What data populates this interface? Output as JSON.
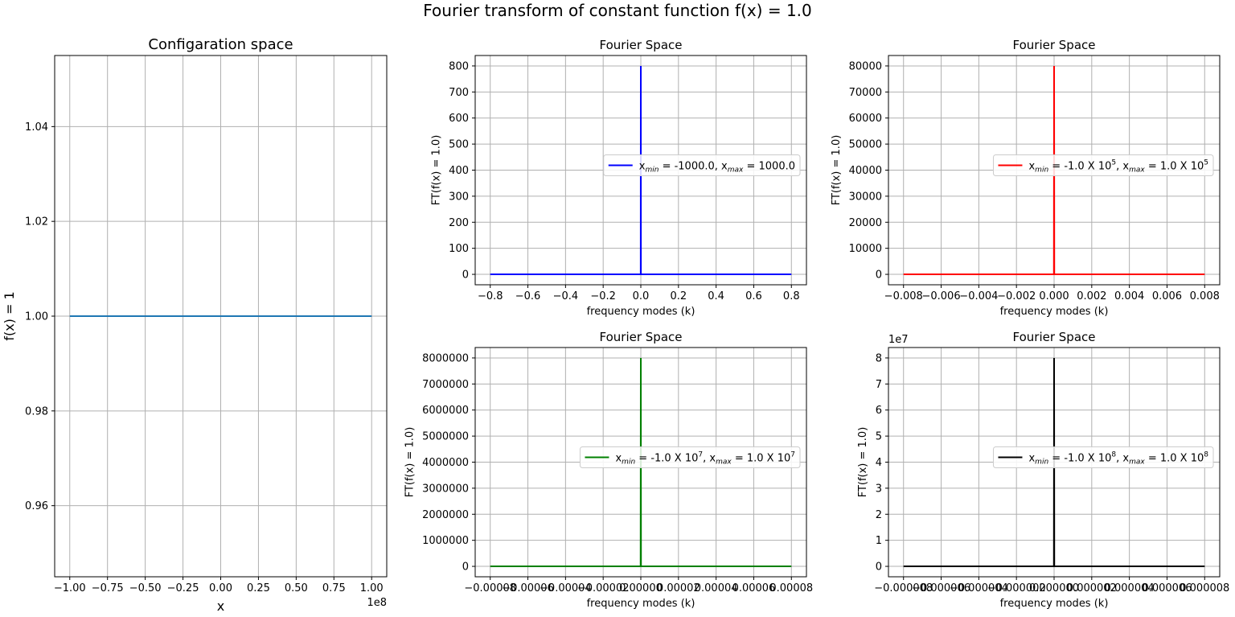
{
  "figure_title": "Fourier transform of constant function f(x) = 1.0",
  "chart_data": [
    {
      "id": "config",
      "type": "line",
      "title": "Configaration space",
      "xlabel": "x",
      "ylabel": "f(x) = 1",
      "offset_text": "1e8",
      "xlim": [
        -1.1,
        1.1
      ],
      "ylim": [
        0.945,
        1.055
      ],
      "xticks": [
        -1.0,
        -0.75,
        -0.5,
        -0.25,
        0.0,
        0.25,
        0.5,
        0.75,
        1.0
      ],
      "xtick_labels": [
        "−1.00",
        "−0.75",
        "−0.50",
        "−0.25",
        "0.00",
        "0.25",
        "0.50",
        "0.75",
        "1.00"
      ],
      "yticks": [
        0.96,
        0.98,
        1.0,
        1.02,
        1.04
      ],
      "ytick_labels": [
        "0.96",
        "0.98",
        "1.00",
        "1.02",
        "1.04"
      ],
      "grid": true,
      "series": [
        {
          "color": "#1f77b4",
          "x": [
            -1.0,
            1.0
          ],
          "y": [
            1.0,
            1.0
          ]
        }
      ]
    },
    {
      "id": "fourier1",
      "type": "line",
      "title": "Fourier Space",
      "xlabel": "frequency modes (k)",
      "ylabel": "FT(f(x) = 1.0)",
      "xlim": [
        -0.88,
        0.88
      ],
      "ylim": [
        -40,
        840
      ],
      "xticks": [
        -0.8,
        -0.6,
        -0.4,
        -0.2,
        0.0,
        0.2,
        0.4,
        0.6,
        0.8
      ],
      "xtick_labels": [
        "−0.8",
        "−0.6",
        "−0.4",
        "−0.2",
        "0.0",
        "0.2",
        "0.4",
        "0.6",
        "0.8"
      ],
      "yticks": [
        0,
        100,
        200,
        300,
        400,
        500,
        600,
        700,
        800
      ],
      "ytick_labels": [
        "0",
        "100",
        "200",
        "300",
        "400",
        "500",
        "600",
        "700",
        "800"
      ],
      "grid": true,
      "legend": {
        "placement": "right",
        "parts": [
          {
            "t": "x"
          },
          {
            "t": "min",
            "sub": true
          },
          {
            "t": " = -1000.0, x"
          },
          {
            "t": "max",
            "sub": true
          },
          {
            "t": " = 1000.0"
          }
        ]
      },
      "series": [
        {
          "color": "#0000ff",
          "x": [
            -0.8,
            -0.0005,
            0.0,
            0.0005,
            0.8
          ],
          "y": [
            0,
            0,
            800,
            0,
            0
          ]
        }
      ]
    },
    {
      "id": "fourier2",
      "type": "line",
      "title": "Fourier Space",
      "xlabel": "frequency modes (k)",
      "ylabel": "FT(f(x) = 1.0)",
      "xlim": [
        -0.0088,
        0.0088
      ],
      "ylim": [
        -4000,
        84000
      ],
      "xticks": [
        -0.008,
        -0.006,
        -0.004,
        -0.002,
        0.0,
        0.002,
        0.004,
        0.006,
        0.008
      ],
      "xtick_labels": [
        "−0.008",
        "−0.006",
        "−0.004",
        "−0.002",
        "0.000",
        "0.002",
        "0.004",
        "0.006",
        "0.008"
      ],
      "yticks": [
        0,
        10000,
        20000,
        30000,
        40000,
        50000,
        60000,
        70000,
        80000
      ],
      "ytick_labels": [
        "0",
        "10000",
        "20000",
        "30000",
        "40000",
        "50000",
        "60000",
        "70000",
        "80000"
      ],
      "grid": true,
      "legend": {
        "placement": "right",
        "parts": [
          {
            "t": "x"
          },
          {
            "t": "min",
            "sub": true
          },
          {
            "t": " = -1.0 X 10"
          },
          {
            "t": "5",
            "sup": true
          },
          {
            "t": ", x"
          },
          {
            "t": "max",
            "sub": true
          },
          {
            "t": " = 1.0 X 10"
          },
          {
            "t": "5",
            "sup": true
          }
        ]
      },
      "series": [
        {
          "color": "#ff0000",
          "x": [
            -0.008,
            -1e-05,
            0.0,
            1e-05,
            0.008
          ],
          "y": [
            0,
            0,
            80000,
            0,
            0
          ]
        }
      ]
    },
    {
      "id": "fourier3",
      "type": "line",
      "title": "Fourier Space",
      "xlabel": "frequency modes (k)",
      "ylabel": "FT(f(x) = 1.0)",
      "xlim": [
        -8.8e-05,
        8.8e-05
      ],
      "ylim": [
        -400000,
        8400000
      ],
      "xticks": [
        -8e-05,
        -6e-05,
        -4e-05,
        -2e-05,
        0.0,
        2e-05,
        4e-05,
        6e-05,
        8e-05
      ],
      "xtick_labels": [
        "−0.00008",
        "−0.00006",
        "−0.00004",
        "−0.00002",
        "0.00000",
        "0.00002",
        "0.00004",
        "0.00006",
        "0.00008"
      ],
      "yticks": [
        0,
        1000000,
        2000000,
        3000000,
        4000000,
        5000000,
        6000000,
        7000000,
        8000000
      ],
      "ytick_labels": [
        "0",
        "1000000",
        "2000000",
        "3000000",
        "4000000",
        "5000000",
        "6000000",
        "7000000",
        "8000000"
      ],
      "grid": true,
      "legend": {
        "placement": "right",
        "parts": [
          {
            "t": "x"
          },
          {
            "t": "min",
            "sub": true
          },
          {
            "t": " = -1.0 X 10"
          },
          {
            "t": "7",
            "sup": true
          },
          {
            "t": ", x"
          },
          {
            "t": "max",
            "sub": true
          },
          {
            "t": " = 1.0 X 10"
          },
          {
            "t": "7",
            "sup": true
          }
        ]
      },
      "series": [
        {
          "color": "#008000",
          "x": [
            -8e-05,
            -1e-07,
            0.0,
            1e-07,
            8e-05
          ],
          "y": [
            0,
            0,
            8000000,
            0,
            0
          ]
        }
      ]
    },
    {
      "id": "fourier4",
      "type": "line",
      "title": "Fourier Space",
      "xlabel": "frequency modes (k)",
      "ylabel": "FT(f(x) = 1.0)",
      "offset_text": "1e7",
      "xlim": [
        -8.8e-06,
        8.8e-06
      ],
      "ylim": [
        -0.4,
        8.4
      ],
      "xticks": [
        -8e-06,
        -6e-06,
        -4e-06,
        -2e-06,
        0.0,
        2e-06,
        4e-06,
        6e-06,
        8e-06
      ],
      "xtick_labels": [
        "−0.000008",
        "−0.000006",
        "−0.000004",
        "−0.000002",
        "0.000000",
        "0.000002",
        "0.000004",
        "0.000006",
        "0.000008"
      ],
      "yticks": [
        0,
        1,
        2,
        3,
        4,
        5,
        6,
        7,
        8
      ],
      "ytick_labels": [
        "0",
        "1",
        "2",
        "3",
        "4",
        "5",
        "6",
        "7",
        "8"
      ],
      "grid": true,
      "legend": {
        "placement": "right",
        "parts": [
          {
            "t": "x"
          },
          {
            "t": "min",
            "sub": true
          },
          {
            "t": " = -1.0 X 10"
          },
          {
            "t": "8",
            "sup": true
          },
          {
            "t": ", x"
          },
          {
            "t": "max",
            "sub": true
          },
          {
            "t": " = 1.0 X 10"
          },
          {
            "t": "8",
            "sup": true
          }
        ]
      },
      "series": [
        {
          "color": "#000000",
          "x": [
            -8e-06,
            -1e-08,
            0.0,
            1e-08,
            8e-06
          ],
          "y": [
            0,
            0,
            8,
            0,
            0
          ]
        }
      ]
    }
  ]
}
